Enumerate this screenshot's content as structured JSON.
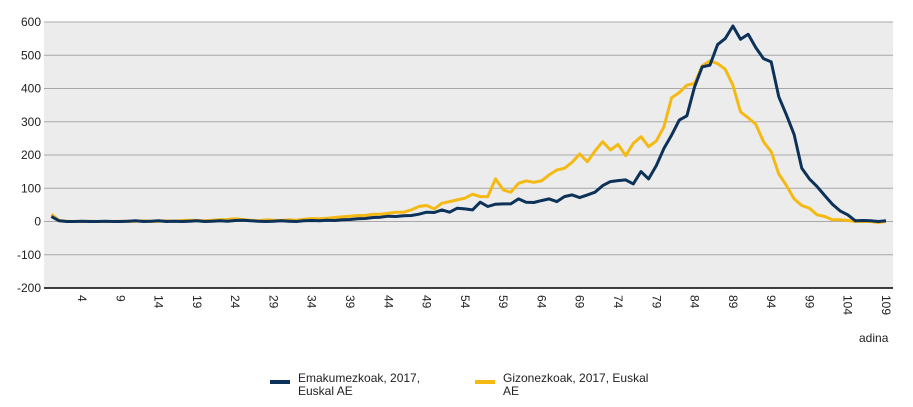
{
  "chart_data": {
    "type": "line",
    "title": "",
    "xlabel": "adina",
    "ylabel": "",
    "ylim": [
      -200,
      600
    ],
    "yticks": [
      -200,
      -100,
      0,
      100,
      200,
      300,
      400,
      500,
      600
    ],
    "xlim": [
      0,
      109
    ],
    "xtick_values": [
      4,
      9,
      14,
      19,
      24,
      29,
      34,
      39,
      44,
      49,
      54,
      59,
      64,
      69,
      74,
      79,
      84,
      89,
      94,
      99,
      104,
      109
    ],
    "xtick_labels": [
      "4",
      "9",
      "14",
      "19",
      "24",
      "29",
      "34",
      "39",
      "44",
      "49",
      "54",
      "59",
      "64",
      "69",
      "74",
      "79",
      "84",
      "89",
      "94",
      "99",
      "104",
      "109"
    ],
    "grid": true,
    "legend_position": "bottom",
    "x_start": 0,
    "series": [
      {
        "name": "Emakumezkoak, 2017, Euskal AE",
        "color": "#0d3259",
        "values": [
          15,
          2,
          0,
          0,
          1,
          0,
          0,
          1,
          0,
          0,
          1,
          2,
          0,
          1,
          2,
          0,
          1,
          0,
          1,
          2,
          0,
          1,
          2,
          1,
          3,
          4,
          2,
          1,
          0,
          1,
          2,
          1,
          0,
          2,
          3,
          2,
          4,
          3,
          5,
          6,
          8,
          9,
          12,
          13,
          16,
          15,
          17,
          18,
          22,
          28,
          27,
          35,
          28,
          40,
          38,
          35,
          58,
          45,
          52,
          53,
          53,
          68,
          58,
          57,
          63,
          68,
          60,
          75,
          80,
          72,
          80,
          88,
          108,
          120,
          123,
          125,
          113,
          150,
          128,
          168,
          220,
          260,
          305,
          318,
          405,
          465,
          470,
          532,
          550,
          588,
          548,
          563,
          523,
          490,
          480,
          375,
          320,
          262,
          160,
          128,
          105,
          78,
          52,
          32,
          20,
          2,
          3,
          2,
          0,
          2
        ]
      },
      {
        "name": "Gizonezkoak, 2017, Euskal AE",
        "color": "#f5b914",
        "values": [
          22,
          3,
          1,
          0,
          0,
          1,
          0,
          0,
          0,
          1,
          0,
          1,
          2,
          0,
          1,
          2,
          1,
          3,
          4,
          3,
          2,
          4,
          5,
          6,
          8,
          6,
          4,
          2,
          5,
          4,
          3,
          5,
          4,
          7,
          9,
          8,
          10,
          12,
          14,
          16,
          18,
          18,
          22,
          22,
          25,
          28,
          28,
          35,
          45,
          48,
          38,
          55,
          60,
          65,
          70,
          82,
          75,
          75,
          128,
          95,
          88,
          115,
          122,
          118,
          122,
          140,
          155,
          160,
          178,
          203,
          180,
          212,
          240,
          215,
          232,
          198,
          235,
          255,
          225,
          242,
          285,
          372,
          388,
          410,
          415,
          468,
          483,
          475,
          458,
          410,
          330,
          312,
          292,
          240,
          210,
          143,
          108,
          68,
          48,
          40,
          20,
          15,
          5,
          5,
          3,
          0,
          0,
          0,
          -3,
          0
        ]
      }
    ]
  }
}
